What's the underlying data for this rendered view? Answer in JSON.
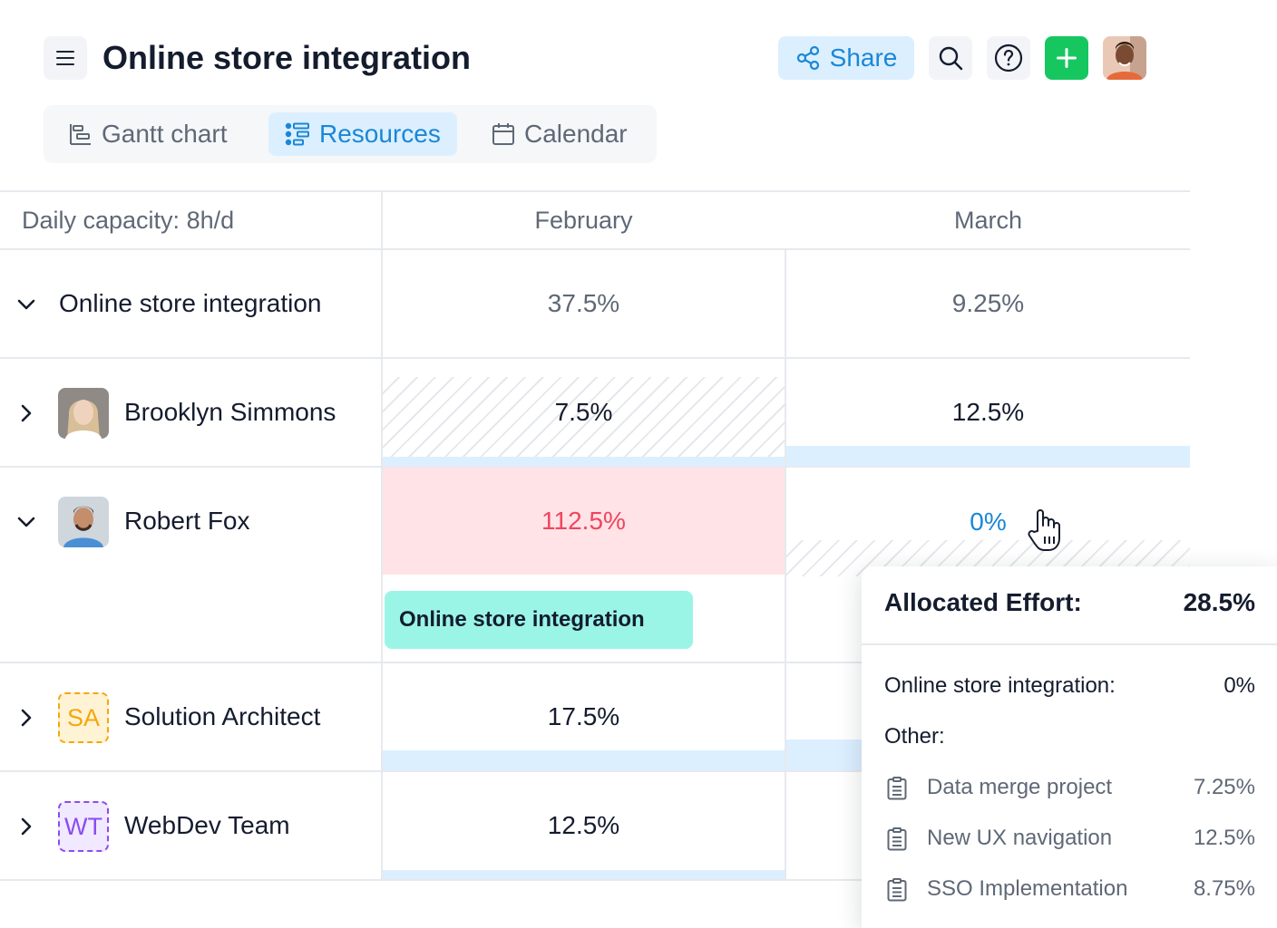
{
  "header": {
    "title": "Online store integration",
    "share_label": "Share",
    "icons": [
      "menu-icon",
      "share-icon",
      "search-icon",
      "help-icon",
      "plus-icon"
    ]
  },
  "tabs": [
    {
      "label": "Gantt chart",
      "icon": "gantt-icon",
      "active": false
    },
    {
      "label": "Resources",
      "icon": "resources-icon",
      "active": true
    },
    {
      "label": "Calendar",
      "icon": "calendar-icon",
      "active": false
    }
  ],
  "table": {
    "capacity_label": "Daily capacity: 8h/d",
    "months": [
      "February",
      "March"
    ],
    "rows": [
      {
        "name": "Online store integration",
        "expanded": true,
        "february": "37.5%",
        "march": "9.25%"
      },
      {
        "name": "Brooklyn Simmons",
        "expanded": false,
        "february": "7.5%",
        "march": "12.5%"
      },
      {
        "name": "Robert Fox",
        "expanded": true,
        "february": "112.5%",
        "march": "0%"
      },
      {
        "name": "Solution Architect",
        "expanded": false,
        "badge": "SA",
        "february": "17.5%"
      },
      {
        "name": "WebDev Team",
        "expanded": false,
        "badge": "WT",
        "february": "12.5%"
      }
    ],
    "task_chip": "Online store integration"
  },
  "popover": {
    "title": "Allocated Effort:",
    "total": "28.5%",
    "project_label": "Online store integration:",
    "project_value": "0%",
    "other_label": "Other:",
    "items": [
      {
        "label": "Data merge project",
        "value": "7.25%"
      },
      {
        "label": "New UX navigation",
        "value": "12.5%"
      },
      {
        "label": "SSO Implementation",
        "value": "8.75%"
      }
    ]
  },
  "colors": {
    "accent": "#1a87d6",
    "accent_bg": "#dcefff",
    "add_button": "#16c760",
    "overload_bg": "#ffe3e7",
    "overload_text": "#f0455e",
    "task_chip": "#9af5e7"
  }
}
